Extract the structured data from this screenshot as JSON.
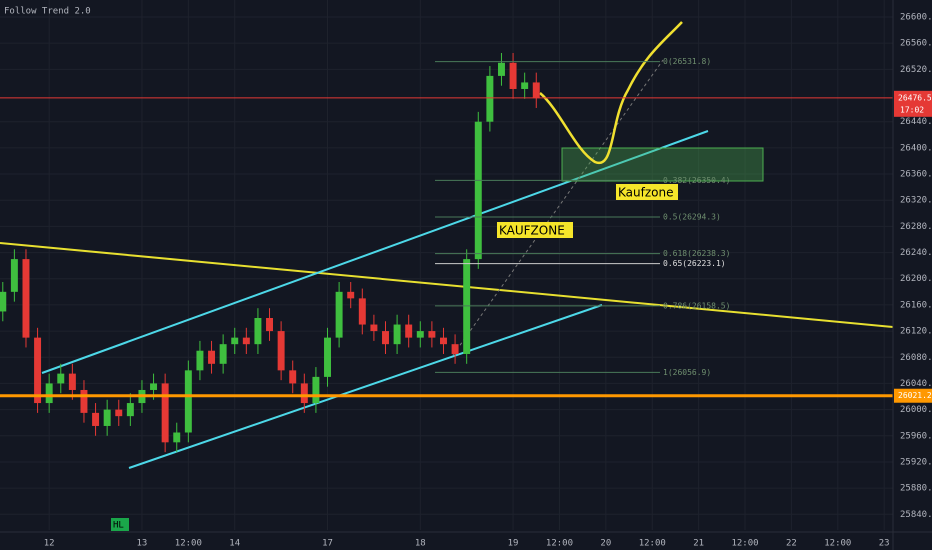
{
  "chart_data": {
    "type": "candlestick",
    "title": "Follow Trend 2.0",
    "up_color": "#3fbf3f",
    "down_color": "#e53935",
    "grid": true,
    "x": [
      -1,
      -0.75,
      -0.5,
      -0.25,
      0,
      0.25,
      0.5,
      0.75,
      1,
      1.25,
      1.5,
      1.75,
      2,
      2.25,
      2.5,
      2.75,
      3,
      3.25,
      3.5,
      3.75,
      4,
      4.25,
      4.5,
      4.75,
      5,
      5.25,
      5.5,
      5.75,
      6,
      6.25,
      6.5,
      6.75,
      7,
      7.25,
      7.5,
      7.75,
      8,
      8.25,
      8.5,
      8.75,
      9,
      9.25,
      9.5,
      9.75,
      10,
      10.25,
      10.5
    ],
    "open": [
      26150,
      26180,
      26230,
      26110,
      26010,
      26040,
      26055,
      26030,
      25995,
      25975,
      26000,
      25990,
      26010,
      26030,
      26040,
      25950,
      25965,
      26060,
      26090,
      26070,
      26100,
      26110,
      26100,
      26140,
      26120,
      26060,
      26040,
      26010,
      26050,
      26110,
      26180,
      26170,
      26130,
      26120,
      26100,
      26130,
      26110,
      26120,
      26110,
      26100,
      26085,
      26230,
      26440,
      26510,
      26530,
      26490,
      26500
    ],
    "high": [
      26195,
      26245,
      26245,
      26125,
      26055,
      26070,
      26070,
      26045,
      26010,
      26015,
      26015,
      26025,
      26045,
      26055,
      26055,
      25980,
      26075,
      26105,
      26105,
      26115,
      26125,
      26125,
      26155,
      26155,
      26135,
      26075,
      26055,
      26065,
      26125,
      26195,
      26195,
      26185,
      26145,
      26135,
      26145,
      26145,
      26135,
      26135,
      26125,
      26115,
      26245,
      26455,
      26525,
      26545,
      26545,
      26515,
      26515
    ],
    "low": [
      26135,
      26165,
      26095,
      25995,
      25995,
      26025,
      26015,
      25980,
      25960,
      25960,
      25975,
      25975,
      25995,
      26015,
      25935,
      25935,
      25950,
      26045,
      26055,
      26055,
      26085,
      26085,
      26085,
      26105,
      26045,
      26025,
      25995,
      25995,
      26035,
      26095,
      26155,
      26115,
      26105,
      26085,
      26085,
      26095,
      26095,
      26095,
      26085,
      26070,
      26070,
      26215,
      26425,
      26495,
      26475,
      26475,
      26461
    ],
    "close": [
      26180,
      26230,
      26110,
      26010,
      26040,
      26055,
      26030,
      25995,
      25975,
      26000,
      25990,
      26010,
      26030,
      26040,
      25950,
      25965,
      26060,
      26090,
      26070,
      26100,
      26110,
      26100,
      26140,
      26120,
      26060,
      26040,
      26010,
      26050,
      26110,
      26180,
      26170,
      26130,
      26120,
      26100,
      26130,
      26110,
      26120,
      26110,
      26100,
      26085,
      26230,
      26440,
      26510,
      26530,
      26490,
      26500,
      26476
    ],
    "xlim": [
      -1.06,
      18.19
    ],
    "xticks": [
      {
        "value": 0,
        "label": "12"
      },
      {
        "value": 2,
        "label": "13"
      },
      {
        "value": 3,
        "label": "12:00"
      },
      {
        "value": 4,
        "label": "14"
      },
      {
        "value": 6,
        "label": "17"
      },
      {
        "value": 8,
        "label": "18"
      },
      {
        "value": 10,
        "label": "19"
      },
      {
        "value": 11,
        "label": "12:00"
      },
      {
        "value": 12,
        "label": "20"
      },
      {
        "value": 13,
        "label": "12:00"
      },
      {
        "value": 14,
        "label": "21"
      },
      {
        "value": 15,
        "label": "12:00"
      },
      {
        "value": 16,
        "label": "22"
      },
      {
        "value": 17,
        "label": "12:00"
      },
      {
        "value": 18,
        "label": "23"
      }
    ],
    "ylim": [
      25816,
      26626
    ],
    "yticks": [
      {
        "value": 25840,
        "label": "25840.0"
      },
      {
        "value": 25880,
        "label": "25880.0"
      },
      {
        "value": 25920,
        "label": "25920.0"
      },
      {
        "value": 25960,
        "label": "25960.0"
      },
      {
        "value": 26000,
        "label": "26000.0"
      },
      {
        "value": 26040,
        "label": "26040.0"
      },
      {
        "value": 26080,
        "label": "26080.0"
      },
      {
        "value": 26120,
        "label": "26120.0"
      },
      {
        "value": 26160,
        "label": "26160.0"
      },
      {
        "value": 26200,
        "label": "26200.0"
      },
      {
        "value": 26240,
        "label": "26240.0"
      },
      {
        "value": 26280,
        "label": "26280.0"
      },
      {
        "value": 26320,
        "label": "26320.0"
      },
      {
        "value": 26360,
        "label": "26360.0"
      },
      {
        "value": 26400,
        "label": "26400.0"
      },
      {
        "value": 26440,
        "label": "26440.0"
      },
      {
        "value": 26520,
        "label": "26520.0"
      },
      {
        "value": 26560,
        "label": "26560.0"
      },
      {
        "value": 26600,
        "label": "26600.0"
      }
    ],
    "fib_levels": [
      {
        "value": 26531.8,
        "label": "0(26531.8)"
      },
      {
        "value": 26350.4,
        "label": "0.382(26350.4)"
      },
      {
        "value": 26294.3,
        "label": "0.5(26294.3)"
      },
      {
        "value": 26238.3,
        "label": "0.618(26238.3)"
      },
      {
        "value": 26223.1,
        "label": "0.65(26223.1)"
      },
      {
        "value": 26158.5,
        "label": "0.786(26158.5)"
      },
      {
        "value": 26056.9,
        "label": "1(26056.9)"
      }
    ],
    "price_line": {
      "value": 26476.5,
      "time": "17:02"
    },
    "support_line": {
      "value": 26021.2
    },
    "annotations": [
      "Kaufzone",
      "KAUFZONE",
      "HL"
    ]
  }
}
